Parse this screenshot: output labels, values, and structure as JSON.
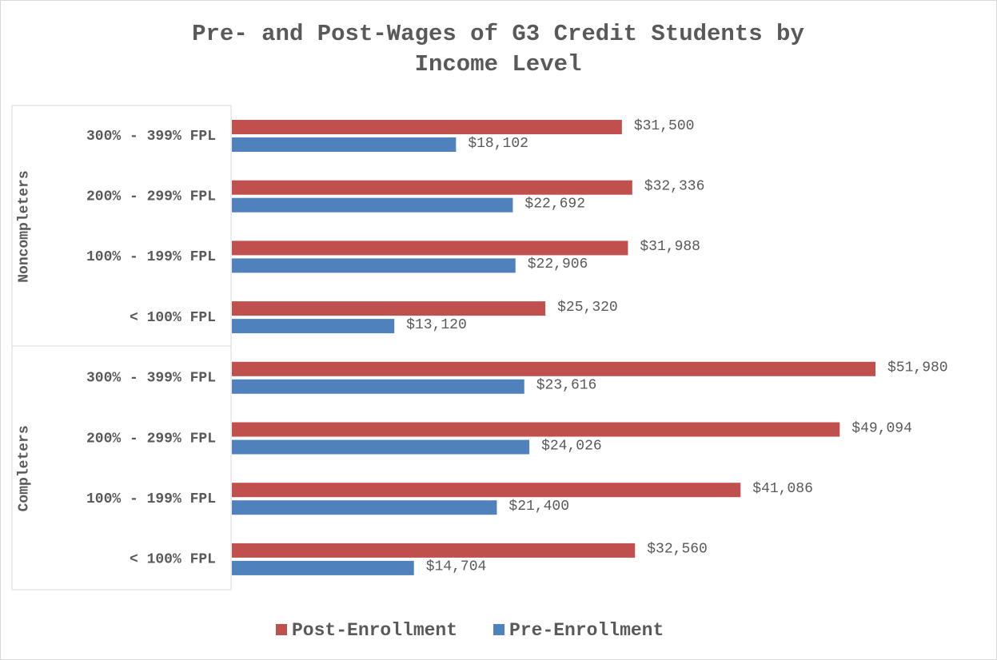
{
  "chart_data": {
    "type": "bar",
    "orientation": "horizontal",
    "title": "Pre- and Post-Wages of G3 Credit Students by Income Level",
    "categories": [
      "300% - 399% FPL",
      "200% - 299% FPL",
      "100% - 199% FPL",
      "< 100% FPL",
      "300% - 399% FPL",
      "200% - 299% FPL",
      "100% - 199% FPL",
      "< 100% FPL"
    ],
    "category_groups": [
      "Noncompleters",
      "Noncompleters",
      "Noncompleters",
      "Noncompleters",
      "Completers",
      "Completers",
      "Completers",
      "Completers"
    ],
    "series": [
      {
        "name": "Post-Enrollment",
        "color": "#c0504d",
        "values": [
          31500,
          32336,
          31988,
          25320,
          51980,
          49094,
          41086,
          32560
        ],
        "value_labels": [
          "$31,500",
          "$32,336",
          "$31,988",
          "$25,320",
          "$51,980",
          "$49,094",
          "$41,086",
          "$32,560"
        ]
      },
      {
        "name": "Pre-Enrollment",
        "color": "#4f81bd",
        "values": [
          18102,
          22692,
          22906,
          13120,
          23616,
          24026,
          21400,
          14704
        ],
        "value_labels": [
          "$18,102",
          "$22,692",
          "$22,906",
          "$13,120",
          "$23,616",
          "$24,026",
          "$21,400",
          "$14,704"
        ]
      }
    ],
    "legend": "bottom"
  }
}
